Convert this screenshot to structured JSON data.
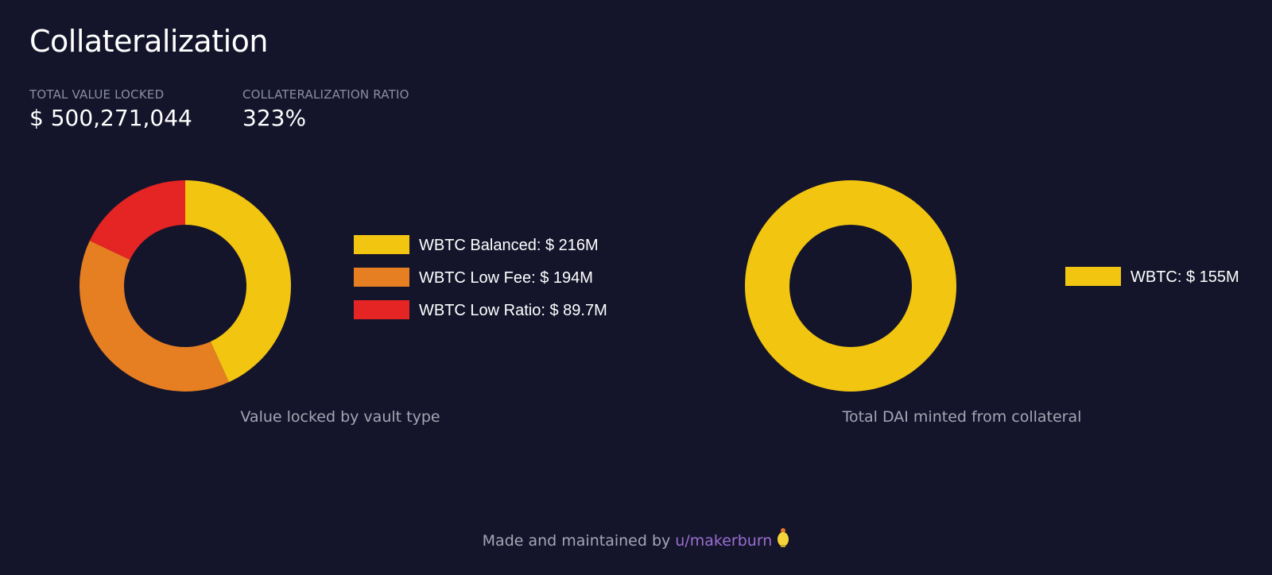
{
  "header": {
    "title": "Collateralization"
  },
  "stats": [
    {
      "label": "TOTAL VALUE LOCKED",
      "value": "$ 500,271,044"
    },
    {
      "label": "COLLATERALIZATION RATIO",
      "value": "323%"
    }
  ],
  "chart_data": [
    {
      "type": "pie",
      "variant": "donut",
      "title": "Value locked by vault type",
      "legend_position": "right",
      "series": [
        {
          "name": "WBTC Balanced",
          "value": 216,
          "label": "WBTC Balanced: $ 216M",
          "color": "#f2c511"
        },
        {
          "name": "WBTC Low Fee",
          "value": 194,
          "label": "WBTC Low Fee: $ 194M",
          "color": "#e67e22"
        },
        {
          "name": "WBTC Low Ratio",
          "value": 89.7,
          "label": "WBTC Low Ratio: $ 89.7M",
          "color": "#e52424"
        }
      ],
      "unit": "$M"
    },
    {
      "type": "pie",
      "variant": "donut",
      "title": "Total DAI minted from collateral",
      "legend_position": "right",
      "series": [
        {
          "name": "WBTC",
          "value": 155,
          "label": "WBTC: $ 155M",
          "color": "#f2c511"
        }
      ],
      "unit": "$M"
    }
  ],
  "footer": {
    "text": "Made and maintained by ",
    "link_label": "u/makerburn",
    "icon": "bulb-icon"
  }
}
